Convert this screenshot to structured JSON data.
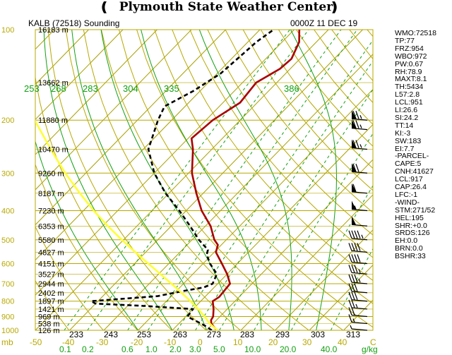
{
  "header": {
    "title": "Plymouth State Weather Center",
    "station": "KALB (72518) Sounding",
    "datetime": "0000Z 11 DEC 19"
  },
  "colors": {
    "isobar": "#b8a800",
    "isotherm": "#a8a000",
    "dry_adiabat": "#b8a800",
    "moist_adiabat": "#11a011",
    "mixing_ratio": "#11a011",
    "parcel": "#ffff33",
    "temperature": "#aa0000",
    "dewpoint": "#000000"
  },
  "chart_data": {
    "type": "line",
    "title": "KALB (72518) Sounding",
    "subtitle": "0000Z 11 DEC 19",
    "xlabel": "C",
    "x_tick_labels": [
      "-50",
      "-40",
      "-30",
      "-20",
      "-10",
      "0",
      "10",
      "20",
      "30",
      "40"
    ],
    "xlim": [
      -50,
      40
    ],
    "y_scale": "log",
    "ylim": [
      1000,
      100
    ],
    "y_axis_unit": "mb",
    "pressure_labels": [
      "100",
      "200",
      "300",
      "400",
      "500",
      "600",
      "700",
      "800",
      "900",
      "1000"
    ],
    "height_labels": [
      {
        "p": 100,
        "h": "16183 m"
      },
      {
        "p": 150,
        "h": "13662 m"
      },
      {
        "p": 200,
        "h": "11880 m"
      },
      {
        "p": 250,
        "h": "10470 m"
      },
      {
        "p": 300,
        "h": "9260 m"
      },
      {
        "p": 350,
        "h": "8187 m"
      },
      {
        "p": 400,
        "h": "7230 m"
      },
      {
        "p": 450,
        "h": "6353 m"
      },
      {
        "p": 500,
        "h": "5580 m"
      },
      {
        "p": 550,
        "h": "4827 m"
      },
      {
        "p": 600,
        "h": "4151 m"
      },
      {
        "p": 650,
        "h": "3527 m"
      },
      {
        "p": 700,
        "h": "2944 m"
      },
      {
        "p": 750,
        "h": "2402 m"
      },
      {
        "p": 800,
        "h": "1897 m"
      },
      {
        "p": 850,
        "h": "1421 m"
      },
      {
        "p": 900,
        "h": "969 m"
      },
      {
        "p": 950,
        "h": "538 m"
      },
      {
        "p": 1000,
        "h": "126 m"
      }
    ],
    "theta_labels_top": [
      "253",
      "268",
      "283",
      "304",
      "335",
      "386"
    ],
    "theta_labels_bottom": [
      "233",
      "243",
      "253",
      "263",
      "273",
      "283",
      "293",
      "303",
      "313"
    ],
    "mixing_ratio_labels": [
      "0.1",
      "0.2",
      "0.6",
      "1.0",
      "2.0",
      "3.0",
      "5.0",
      "10.0",
      "20.0",
      "40.0"
    ],
    "mixing_ratio_unit": "g/kg",
    "series": [
      {
        "role": "temperature",
        "points": [
          [
            1000,
            3.0
          ],
          [
            975,
            1.2
          ],
          [
            950,
            -0.5
          ],
          [
            925,
            -1.6
          ],
          [
            900,
            -2.0
          ],
          [
            850,
            -4.0
          ],
          [
            800,
            -6.5
          ],
          [
            775,
            -5.8
          ],
          [
            750,
            -6.0
          ],
          [
            700,
            -6.4
          ],
          [
            650,
            -10.0
          ],
          [
            600,
            -14.5
          ],
          [
            550,
            -19.5
          ],
          [
            520,
            -21.0
          ],
          [
            500,
            -23.5
          ],
          [
            450,
            -28.5
          ],
          [
            400,
            -35.5
          ],
          [
            350,
            -42.0
          ],
          [
            300,
            -49.0
          ],
          [
            250,
            -55.5
          ],
          [
            230,
            -59.0
          ],
          [
            200,
            -58.0
          ],
          [
            175,
            -55.0
          ],
          [
            150,
            -56.0
          ],
          [
            135,
            -53.0
          ],
          [
            125,
            -52.5
          ],
          [
            110,
            -55.0
          ],
          [
            100,
            -58.5
          ]
        ]
      },
      {
        "role": "dewpoint",
        "points": [
          [
            1000,
            1.5
          ],
          [
            975,
            -0.8
          ],
          [
            950,
            -3.5
          ],
          [
            925,
            -6.5
          ],
          [
            900,
            -9.5
          ],
          [
            850,
            -10.0
          ],
          [
            830,
            -25.0
          ],
          [
            815,
            -40.0
          ],
          [
            800,
            -42.0
          ],
          [
            770,
            -24.0
          ],
          [
            740,
            -18.0
          ],
          [
            720,
            -13.0
          ],
          [
            700,
            -11.5
          ],
          [
            650,
            -13.0
          ],
          [
            600,
            -18.0
          ],
          [
            560,
            -21.5
          ],
          [
            540,
            -22.5
          ],
          [
            500,
            -28.0
          ],
          [
            450,
            -34.5
          ],
          [
            400,
            -42.0
          ],
          [
            350,
            -51.0
          ],
          [
            300,
            -60.0
          ],
          [
            250,
            -68.5
          ],
          [
            200,
            -74.0
          ],
          [
            180,
            -76.0
          ],
          [
            160,
            -72.0
          ],
          [
            140,
            -69.0
          ],
          [
            120,
            -68.0
          ],
          [
            110,
            -67.5
          ],
          [
            100,
            -66.0
          ]
        ]
      },
      {
        "role": "parcel",
        "points": [
          [
            1000,
            3.2
          ],
          [
            950,
            -1.0
          ],
          [
            900,
            -4.5
          ],
          [
            850,
            -8.5
          ],
          [
            800,
            -13.0
          ],
          [
            750,
            -18.0
          ],
          [
            700,
            -23.5
          ],
          [
            650,
            -29.5
          ],
          [
            600,
            -36.0
          ],
          [
            550,
            -43.0
          ],
          [
            500,
            -50.5
          ],
          [
            450,
            -58.5
          ],
          [
            400,
            -67.0
          ],
          [
            350,
            -76.0
          ],
          [
            300,
            -86.0
          ],
          [
            250,
            -97.0
          ],
          [
            200,
            -110.0
          ],
          [
            150,
            -124.0
          ],
          [
            100,
            -142.0
          ]
        ]
      }
    ],
    "wind_barbs": [
      {
        "p": 200,
        "spd": 75
      },
      {
        "p": 215,
        "spd": 75
      },
      {
        "p": 250,
        "spd": 75
      },
      {
        "p": 300,
        "spd": 70
      },
      {
        "p": 350,
        "spd": 60
      },
      {
        "p": 400,
        "spd": 55
      },
      {
        "p": 450,
        "spd": 50
      },
      {
        "p": 500,
        "spd": 45
      },
      {
        "p": 550,
        "spd": 40
      },
      {
        "p": 600,
        "spd": 40
      },
      {
        "p": 650,
        "spd": 35
      },
      {
        "p": 700,
        "spd": 35
      },
      {
        "p": 750,
        "spd": 30
      },
      {
        "p": 800,
        "spd": 30
      },
      {
        "p": 850,
        "spd": 25
      },
      {
        "p": 900,
        "spd": 20
      },
      {
        "p": 950,
        "spd": 15
      },
      {
        "p": 1000,
        "spd": 5
      }
    ]
  },
  "indices": [
    "WMO:72518",
    "TP:77",
    "FRZ:954",
    "WBO:972",
    "PW:0.67",
    "RH:78.9",
    "MAXT:8.1",
    "TH:5434",
    "L57:2.8",
    "LCL:951",
    "LI:26.6",
    "SI:24.2",
    "TT:14",
    "KI:-3",
    "SW:183",
    "EI:7.7",
    "-PARCEL-",
    "CAPE:5",
    "CNH:41627",
    "LCL:917",
    "CAP:26.4",
    "LFC:-1",
    "-WIND-",
    "STM:271/52",
    "HEL:195",
    "SHR:+0.0",
    "SRDS:126",
    "EH:0.0",
    "BRN:0.0",
    "BSHR:33"
  ]
}
